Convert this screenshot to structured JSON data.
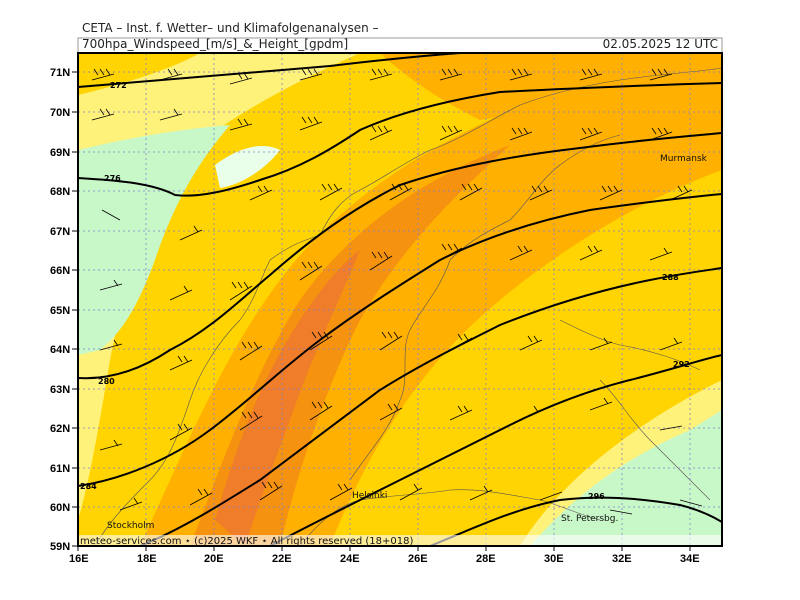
{
  "header": {
    "title": "CETA – Inst. f. Wetter– und Klimafolgenanalysen –",
    "product": "700hpa_Windspeed_[m/s]_&_Height_[gpdm]",
    "datetime": "02.05.2025 12 UTC"
  },
  "footer": {
    "copyright": "meteo-services.com ⋆ (c)2025 WKF ⋆ All rights reserved (18+018)"
  },
  "axes": {
    "lat_labels": [
      "71N",
      "70N",
      "69N",
      "68N",
      "67N",
      "66N",
      "65N",
      "64N",
      "63N",
      "62N",
      "61N",
      "60N",
      "59N"
    ],
    "lon_labels": [
      "16E",
      "18E",
      "20E",
      "22E",
      "24E",
      "26E",
      "28E",
      "30E",
      "32E",
      "34E"
    ]
  },
  "cities": [
    "Murmansk",
    "Helsinki",
    "Stockholm",
    "St. Petersbg."
  ],
  "contour_labels": [
    "272",
    "276",
    "280",
    "284",
    "288",
    "292",
    "296"
  ],
  "colors": {
    "wind_0_5": "#ffffff",
    "wind_5_10": "#c8f7c8",
    "wind_10_15": "#fff27a",
    "wind_15_20": "#ffd400",
    "wind_20_25": "#ffb000",
    "wind_25_30": "#f5920f",
    "wind_30_35": "#ef7d2a",
    "contour": "#000000",
    "grid": "#8080d0"
  }
}
